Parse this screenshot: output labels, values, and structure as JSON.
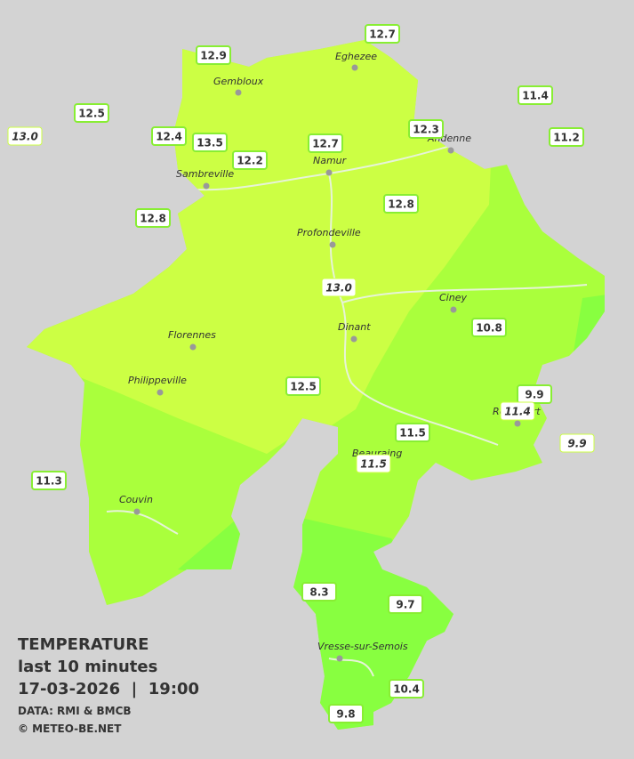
{
  "legend": {
    "title": "TEMPERATURE",
    "period": "last 10 minutes",
    "datetime": "17-03-2026  |  19:00",
    "source": "DATA: RMI & BMCB",
    "copyright": "© METEO-BE.NET"
  },
  "cities": [
    "Eghezee",
    "Gembloux",
    "Andenne",
    "Namur",
    "Sambreville",
    "Profondeville",
    "Ciney",
    "Dinant",
    "Florennes",
    "Philippeville",
    "Rochefort",
    "Beauraing",
    "Couvin",
    "Vresse-sur-Semois"
  ],
  "stations": [
    "12.7",
    "12.9",
    "11.4",
    "12.5",
    "13.0",
    "12.4",
    "13.5",
    "12.3",
    "11.2",
    "12.7",
    "12.2",
    "12.8",
    "12.8",
    "13.0",
    "10.8",
    "12.5",
    "9.9",
    "11.4",
    "9.9",
    "11.5",
    "11.5",
    "11.3",
    "8.3",
    "9.7",
    "10.4",
    "9.8"
  ]
}
